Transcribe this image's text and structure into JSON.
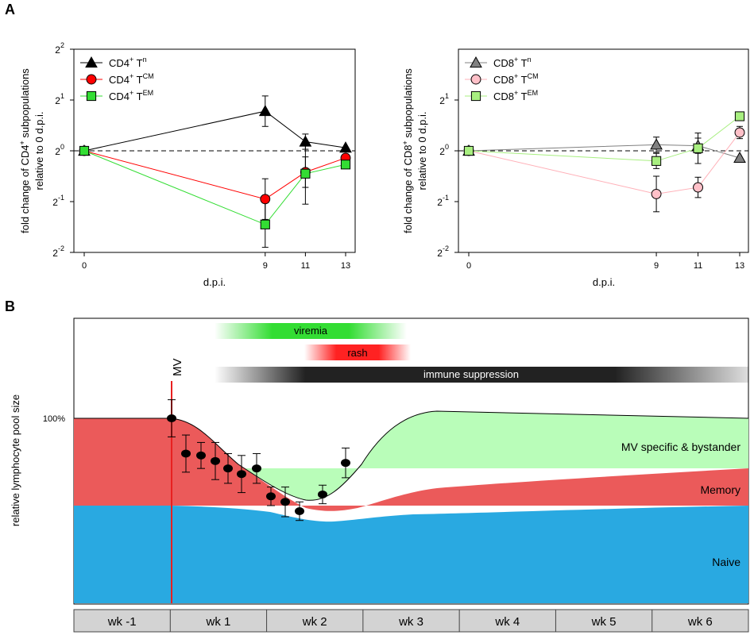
{
  "panel_a_label": "A",
  "panel_b_label": "B",
  "chart_data": [
    {
      "type": "line",
      "panel": "A-left",
      "xlabel": "d.p.i.",
      "ylabel_main": "fold change of CD4",
      "ylabel_sup": "+",
      "ylabel_tail": " subpopulations",
      "ylabel2": "relative to 0 d.p.i.",
      "x": [
        0,
        9,
        11,
        13
      ],
      "x_ticks": [
        "0",
        "9",
        "11",
        "13"
      ],
      "y_scale": "log2",
      "y_ticks": [
        {
          "base": "2",
          "exp": "2",
          "value": 2
        },
        {
          "base": "2",
          "exp": "1",
          "value": 1
        },
        {
          "base": "2",
          "exp": "0",
          "value": 0
        },
        {
          "base": "2",
          "exp": "-1",
          "value": -1
        },
        {
          "base": "2",
          "exp": "-2",
          "value": -2
        }
      ],
      "ylim_log2": [
        -2,
        2
      ],
      "reference_line_log2": 0,
      "legend_position": "top-left",
      "series": [
        {
          "label_main": "CD4",
          "label_sup": "+",
          "label_mid": " T",
          "label_sup2": "n",
          "marker": "triangle",
          "fill": "#000000",
          "line": "#000000",
          "values_log2": [
            0,
            0.78,
            0.18,
            0.06
          ],
          "err_log2": [
            0,
            0.3,
            0.15,
            0
          ]
        },
        {
          "label_main": "CD4",
          "label_sup": "+",
          "label_mid": " T",
          "label_sup2": "CM",
          "marker": "circle",
          "fill": "#ff0000",
          "line": "#ff0000",
          "values_log2": [
            0,
            -0.95,
            -0.42,
            -0.14
          ],
          "err_log2": [
            0,
            0.4,
            0.3,
            0
          ]
        },
        {
          "label_main": "CD4",
          "label_sup": "+",
          "label_mid": " T",
          "label_sup2": "EM",
          "marker": "square",
          "fill": "#33dd33",
          "line": "#33dd33",
          "values_log2": [
            0,
            -1.45,
            -0.45,
            -0.27
          ],
          "err_log2": [
            0,
            0.45,
            0.6,
            0
          ]
        }
      ]
    },
    {
      "type": "line",
      "panel": "A-right",
      "xlabel": "d.p.i.",
      "ylabel_main": "fold change of CD8",
      "ylabel_sup": "+",
      "ylabel_tail": " subpopulations",
      "ylabel2": "relative to 0 d.p.i.",
      "x": [
        0,
        9,
        11,
        13
      ],
      "x_ticks": [
        "0",
        "9",
        "11",
        "13"
      ],
      "y_scale": "log2",
      "y_ticks": [
        {
          "base": "2",
          "exp": "1",
          "value": 1
        },
        {
          "base": "2",
          "exp": "0",
          "value": 0
        },
        {
          "base": "2",
          "exp": "-1",
          "value": -1
        },
        {
          "base": "2",
          "exp": "-2",
          "value": -2
        }
      ],
      "ylim_log2": [
        -2,
        2
      ],
      "reference_line_log2": 0,
      "legend_position": "top-left",
      "series": [
        {
          "label_main": "CD8",
          "label_sup": "+",
          "label_mid": " T",
          "label_sup2": "n",
          "marker": "triangle",
          "fill": "#808080",
          "line": "#808080",
          "values_log2": [
            0,
            0.12,
            0.1,
            -0.14
          ],
          "err_log2": [
            0,
            0.15,
            0.15,
            0
          ]
        },
        {
          "label_main": "CD8",
          "label_sup": "+",
          "label_mid": " T",
          "label_sup2": "CM",
          "marker": "circle",
          "fill": "#ffc0c8",
          "line": "#ffb0b8",
          "values_log2": [
            0,
            -0.85,
            -0.72,
            0.36
          ],
          "err_log2": [
            0,
            0.35,
            0.2,
            0.12
          ]
        },
        {
          "label_main": "CD8",
          "label_sup": "+",
          "label_mid": " T",
          "label_sup2": "EM",
          "marker": "square",
          "fill": "#a8ef80",
          "line": "#a8ef80",
          "values_log2": [
            0,
            -0.2,
            0.05,
            0.68
          ],
          "err_log2": [
            0,
            0.15,
            0.3,
            0
          ]
        }
      ]
    },
    {
      "type": "area",
      "panel": "B",
      "ylabel": "relative lymphocyte pool size",
      "y_tick_label": "100%",
      "x_categories": [
        "wk -1",
        "wk 1",
        "wk 2",
        "wk 3",
        "wk 4",
        "wk 5",
        "wk 6"
      ],
      "infection_label": "MV",
      "bars": [
        {
          "label": "viremia",
          "color": "#33dd33"
        },
        {
          "label": "rash",
          "color": "#ff2222"
        },
        {
          "label": "immune suppression",
          "color": "#222222"
        }
      ],
      "areas": [
        {
          "label": "Naive",
          "color": "#29a9e1"
        },
        {
          "label": "Memory",
          "color": "#eb5a5a"
        },
        {
          "label": "MV specific & bystander",
          "color": "#b9fdb9"
        }
      ],
      "points_relative_pct": [
        100,
        81,
        80,
        77,
        73,
        70,
        73,
        58,
        55,
        50,
        59,
        76
      ],
      "point_errors_pct": [
        10,
        10,
        7,
        10,
        8,
        10,
        8,
        5,
        8,
        5,
        5,
        8
      ]
    }
  ]
}
